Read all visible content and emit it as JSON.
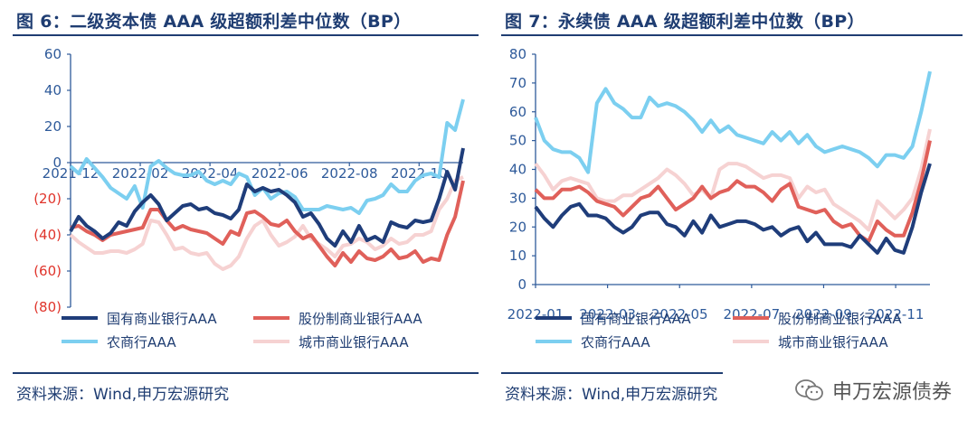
{
  "chart_data": [
    {
      "type": "line",
      "title": "图 6：二级资本债 AAA 级超额利差中位数（BP）",
      "source": "资料来源：Wind,申万宏源研究",
      "ylim": [
        -80,
        60
      ],
      "yticks": [
        {
          "value": 60,
          "label": "60",
          "color": "#2e5a9a"
        },
        {
          "value": 40,
          "label": "40",
          "color": "#2e5a9a"
        },
        {
          "value": 20,
          "label": "20",
          "color": "#2e5a9a"
        },
        {
          "value": 0,
          "label": "0",
          "color": "#2e5a9a"
        },
        {
          "value": -20,
          "label": "(20)",
          "color": "#e0342b"
        },
        {
          "value": -40,
          "label": "(40)",
          "color": "#e0342b"
        },
        {
          "value": -60,
          "label": "(60)",
          "color": "#e0342b"
        },
        {
          "value": -80,
          "label": "(80)",
          "color": "#e0342b"
        }
      ],
      "xlim": [
        0,
        49
      ],
      "x_axis_at": 0,
      "xticks": [
        {
          "value": 0,
          "label": "2021-12"
        },
        {
          "value": 8.7,
          "label": "2022-02"
        },
        {
          "value": 17.4,
          "label": "2022-04"
        },
        {
          "value": 26.1,
          "label": "2022-06"
        },
        {
          "value": 34.8,
          "label": "2022-08"
        },
        {
          "value": 43.5,
          "label": "2022-10"
        }
      ],
      "series": [
        {
          "name": "国有商业银行AAA",
          "color": "#1f3d7a",
          "width": 4,
          "values": [
            -38,
            -30,
            -35,
            -38,
            -42,
            -39,
            -33,
            -35,
            -27,
            -22,
            -18,
            -23,
            -32,
            -28,
            -24,
            -23,
            -26,
            -25,
            -28,
            -29,
            -31,
            -26,
            -12,
            -16,
            -14,
            -16,
            -15,
            -18,
            -22,
            -30,
            -28,
            -34,
            -42,
            -46,
            -38,
            -44,
            -35,
            -43,
            -41,
            -44,
            -33,
            -35,
            -36,
            -32,
            -33,
            -32,
            -20,
            -5,
            -15,
            8
          ]
        },
        {
          "name": "股份制商业银行AAA",
          "color": "#e0605a",
          "width": 4,
          "values": [
            -36,
            -35,
            -38,
            -40,
            -43,
            -40,
            -39,
            -38,
            -37,
            -36,
            -26,
            -26,
            -32,
            -37,
            -35,
            -37,
            -38,
            -39,
            -42,
            -45,
            -38,
            -40,
            -28,
            -27,
            -30,
            -34,
            -35,
            -32,
            -38,
            -42,
            -40,
            -46,
            -52,
            -57,
            -50,
            -55,
            -49,
            -53,
            -54,
            -52,
            -48,
            -53,
            -52,
            -49,
            -55,
            -53,
            -54,
            -40,
            -30,
            -10
          ]
        },
        {
          "name": "农商行AAA",
          "color": "#7ccff0",
          "width": 4,
          "values": [
            -2,
            -6,
            2,
            -3,
            -8,
            -14,
            -17,
            -20,
            -13,
            -25,
            -2,
            1,
            -3,
            -6,
            -7,
            -7,
            -5,
            -10,
            -12,
            -10,
            -12,
            -6,
            -8,
            -18,
            -14,
            -20,
            -17,
            -16,
            -19,
            -26,
            -26,
            -26,
            -24,
            -25,
            -26,
            -25,
            -28,
            -21,
            -20,
            -18,
            -12,
            -16,
            -16,
            -10,
            -7,
            -6,
            -8,
            22,
            18,
            35
          ]
        },
        {
          "name": "城市商业银行AAA",
          "color": "#f6d2d2",
          "width": 4,
          "values": [
            -40,
            -44,
            -47,
            -50,
            -50,
            -49,
            -49,
            -50,
            -48,
            -45,
            -32,
            -33,
            -40,
            -48,
            -47,
            -50,
            -51,
            -50,
            -56,
            -59,
            -57,
            -52,
            -42,
            -35,
            -32,
            -40,
            -46,
            -44,
            -41,
            -35,
            -42,
            -45,
            -48,
            -52,
            -46,
            -45,
            -42,
            -44,
            -48,
            -46,
            -42,
            -45,
            -44,
            -40,
            -40,
            -38,
            -26,
            -20,
            -10,
            -8
          ]
        }
      ]
    },
    {
      "type": "line",
      "title": "图 7：永续债 AAA 级超额利差中位数（BP）",
      "source": "资料来源：Wind,申万宏源研究",
      "ylim": [
        0,
        80
      ],
      "yticks": [
        {
          "value": 80,
          "label": "80",
          "color": "#2e5a9a"
        },
        {
          "value": 70,
          "label": "70",
          "color": "#2e5a9a"
        },
        {
          "value": 60,
          "label": "60",
          "color": "#2e5a9a"
        },
        {
          "value": 50,
          "label": "50",
          "color": "#2e5a9a"
        },
        {
          "value": 40,
          "label": "40",
          "color": "#2e5a9a"
        },
        {
          "value": 30,
          "label": "30",
          "color": "#2e5a9a"
        },
        {
          "value": 20,
          "label": "20",
          "color": "#2e5a9a"
        },
        {
          "value": 10,
          "label": "10",
          "color": "#2e5a9a"
        },
        {
          "value": 0,
          "label": "0",
          "color": "#2e5a9a"
        }
      ],
      "xlim": [
        0,
        46
      ],
      "x_axis_at": 0,
      "xticks": [
        {
          "value": 0,
          "label": "2022-01"
        },
        {
          "value": 8.4,
          "label": "2022-03"
        },
        {
          "value": 16.8,
          "label": "2022-05"
        },
        {
          "value": 25.2,
          "label": "2022-07"
        },
        {
          "value": 33.6,
          "label": "2022-09"
        },
        {
          "value": 42,
          "label": "2022-11"
        }
      ],
      "series": [
        {
          "name": "国有商业银行AAA",
          "color": "#1f3d7a",
          "width": 4,
          "values": [
            27,
            23,
            20,
            24,
            27,
            28,
            24,
            24,
            23,
            20,
            18,
            20,
            24,
            25,
            25,
            21,
            20,
            17,
            22,
            18,
            24,
            20,
            21,
            22,
            22,
            21,
            19,
            20,
            17,
            19,
            20,
            15,
            18,
            14,
            14,
            14,
            13,
            17,
            14,
            11,
            16,
            12,
            11,
            20,
            32,
            42
          ]
        },
        {
          "name": "股份制商业银行AAA",
          "color": "#e0605a",
          "width": 4,
          "values": [
            33,
            30,
            30,
            33,
            33,
            34,
            32,
            29,
            28,
            27,
            24,
            27,
            30,
            31,
            34,
            30,
            26,
            28,
            30,
            34,
            30,
            32,
            33,
            36,
            34,
            34,
            32,
            29,
            33,
            35,
            27,
            26,
            25,
            26,
            22,
            20,
            21,
            17,
            15,
            22,
            19,
            17,
            17,
            25,
            36,
            50
          ]
        },
        {
          "name": "农商行AAA",
          "color": "#7ccff0",
          "width": 4,
          "values": [
            58,
            50,
            47,
            46,
            46,
            44,
            39,
            63,
            68,
            63,
            61,
            58,
            58,
            65,
            62,
            63,
            62,
            60,
            57,
            53,
            57,
            53,
            55,
            52,
            51,
            50,
            49,
            53,
            50,
            53,
            49,
            52,
            48,
            46,
            47,
            48,
            47,
            46,
            44,
            41,
            45,
            45,
            44,
            48,
            60,
            74
          ]
        },
        {
          "name": "城市商业银行AAA",
          "color": "#f6d2d2",
          "width": 4,
          "values": [
            42,
            38,
            33,
            36,
            37,
            36,
            35,
            30,
            29,
            29,
            31,
            31,
            33,
            35,
            37,
            40,
            38,
            35,
            31,
            33,
            30,
            40,
            42,
            42,
            41,
            39,
            37,
            38,
            38,
            37,
            30,
            34,
            32,
            33,
            28,
            26,
            24,
            22,
            19,
            29,
            26,
            23,
            26,
            30,
            40,
            54
          ]
        }
      ]
    }
  ],
  "watermark": {
    "text": "申万宏源债券",
    "icon": "wechat-icon"
  }
}
